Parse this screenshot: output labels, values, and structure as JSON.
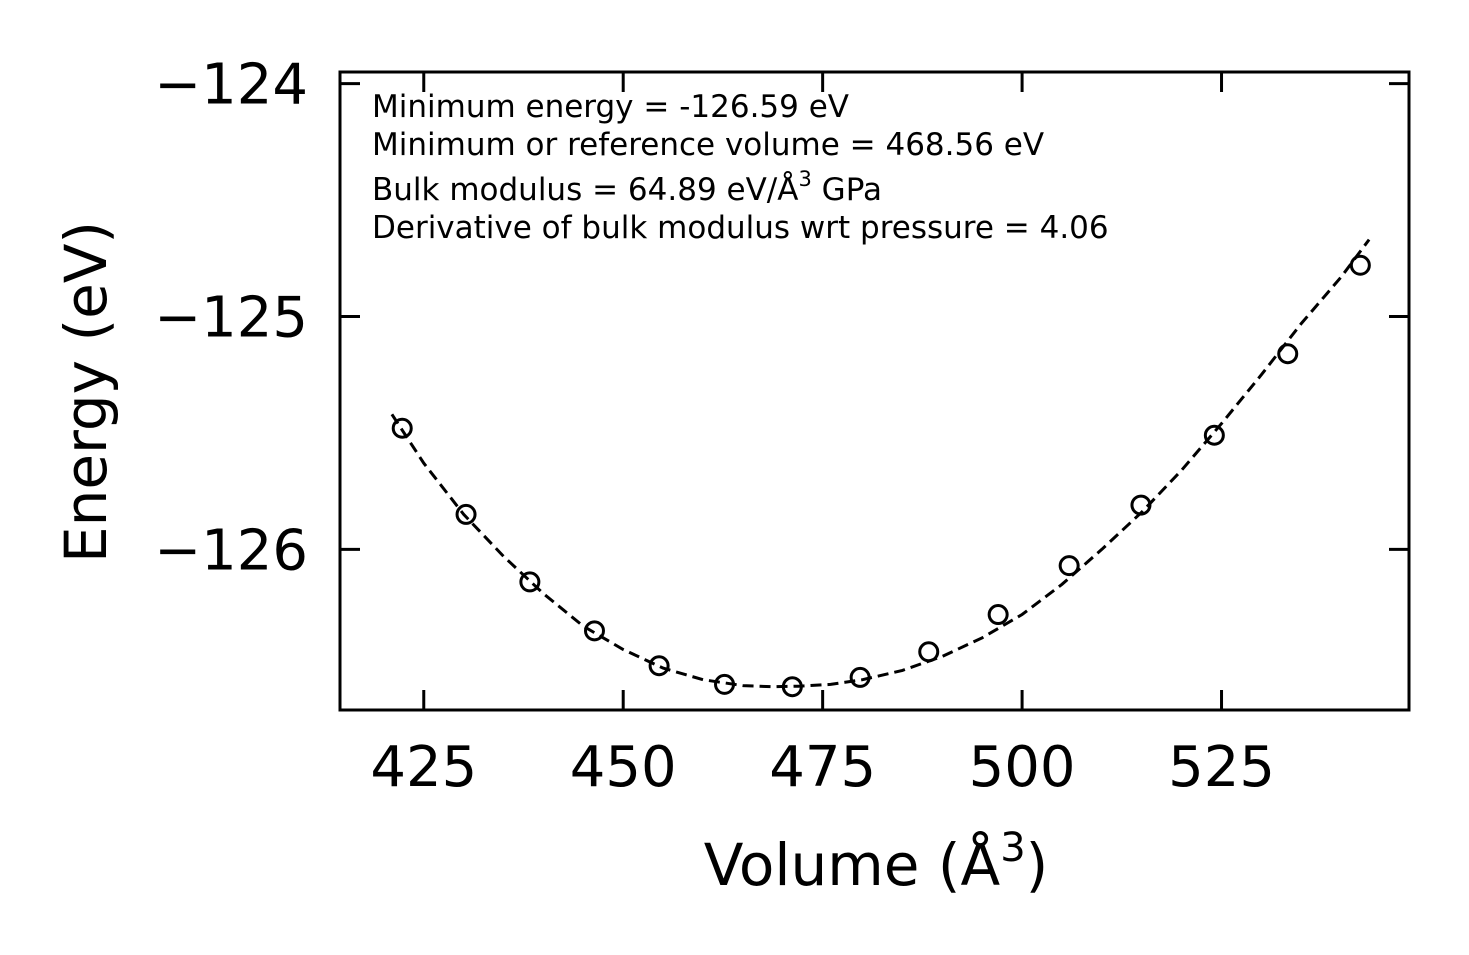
{
  "chart_data": {
    "type": "line",
    "title": "",
    "xlabel": "Volume (Å3)",
    "ylabel": "Energy (eV)",
    "xlim": [
      414.5,
      548.5
    ],
    "ylim": [
      -126.69,
      -123.95
    ],
    "xticks": [
      425,
      450,
      475,
      500,
      525
    ],
    "yticks": [
      -124,
      -125,
      -126
    ],
    "xtick_labels": [
      "425",
      "450",
      "475",
      "500",
      "525"
    ],
    "ytick_labels": [
      "−124",
      "−125",
      "−126"
    ],
    "grid": false,
    "legend": "none",
    "annotations": [
      {
        "text": "Minimum energy = -126.59 eV"
      },
      {
        "text": "Minimum or reference volume = 468.56 eV"
      },
      {
        "text": "Bulk modulus = 64.89 eV/Å3 GPa"
      },
      {
        "text": "Derivative of bulk modulus wrt pressure = 4.06"
      }
    ],
    "series": [
      {
        "name": "data",
        "style": "markers",
        "marker": "open-circle",
        "color": "#000000",
        "x": [
          422.3,
          430.3,
          438.3,
          446.4,
          454.5,
          462.7,
          471.2,
          479.7,
          488.3,
          497.0,
          505.9,
          514.9,
          524.1,
          533.3,
          542.4
        ],
        "y": [
          -125.48,
          -125.85,
          -126.14,
          -126.35,
          -126.5,
          -126.58,
          -126.59,
          -126.55,
          -126.44,
          -126.28,
          -126.07,
          -125.81,
          -125.51,
          -125.16,
          -124.78
        ]
      },
      {
        "name": "fit",
        "style": "dashed-line",
        "color": "#000000",
        "x": [
          421.0,
          425.0,
          430.0,
          435.0,
          440.0,
          445.0,
          450.0,
          455.0,
          460.0,
          465.0,
          468.56,
          472.0,
          476.0,
          480.0,
          485.0,
          490.0,
          495.0,
          500.0,
          505.0,
          510.0,
          515.0,
          520.0,
          525.0,
          530.0,
          535.0,
          540.0,
          543.5
        ],
        "y": [
          -125.42,
          -125.63,
          -125.85,
          -126.03,
          -126.19,
          -126.33,
          -126.43,
          -126.51,
          -126.56,
          -126.585,
          -126.59,
          -126.588,
          -126.58,
          -126.56,
          -126.52,
          -126.46,
          -126.38,
          -126.28,
          -126.15,
          -126.0,
          -125.84,
          -125.66,
          -125.46,
          -125.25,
          -125.03,
          -124.83,
          -124.67
        ]
      }
    ]
  }
}
